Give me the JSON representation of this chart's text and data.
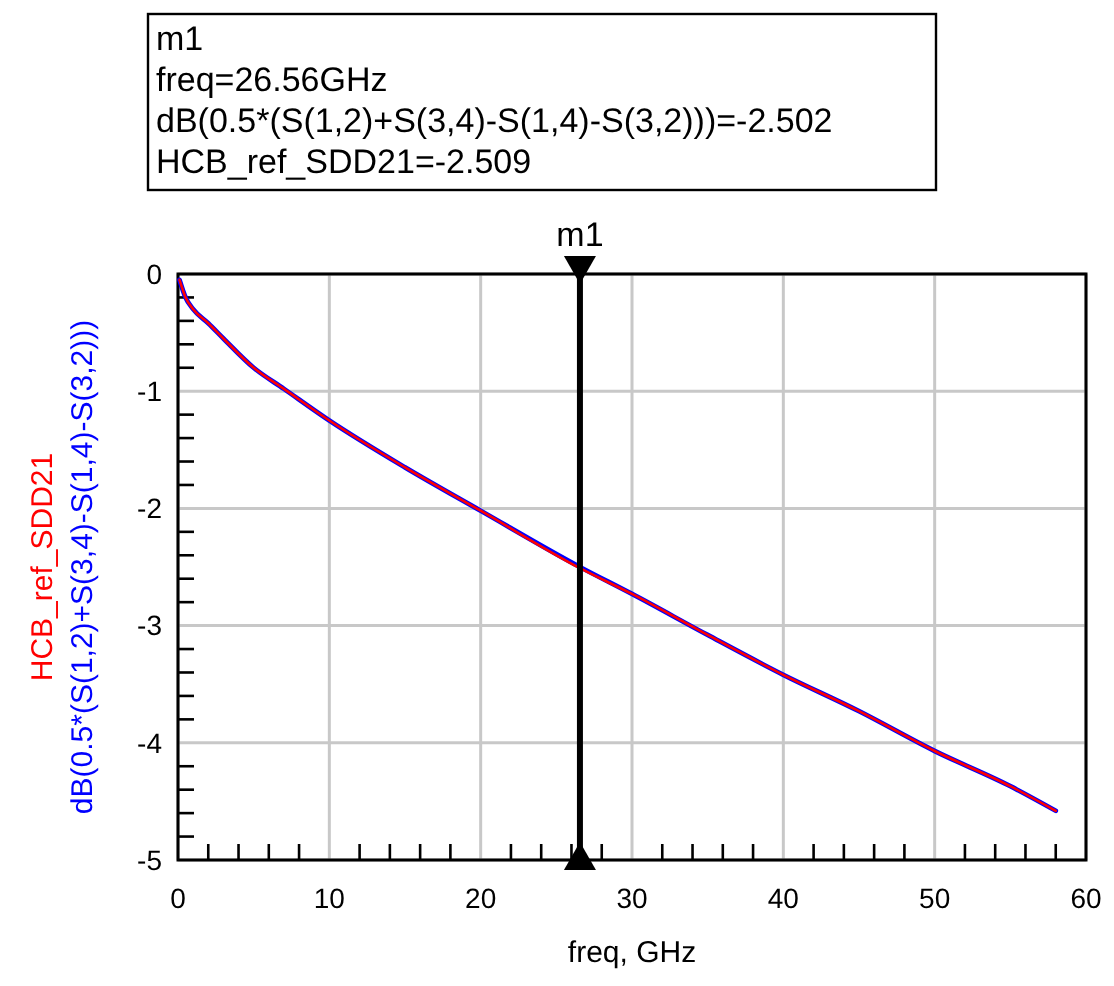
{
  "chart_data": {
    "type": "line",
    "xlabel": "freq, GHz",
    "annotations": [
      "m1",
      "freq=26.56GHz",
      "dB(0.5*(S(1,2)+S(3,4)-S(1,4)-S(3,2)))=-2.502",
      "HCB_ref_SDD21=-2.509"
    ],
    "x": [
      0.1,
      0.5,
      1,
      2,
      3,
      5,
      7,
      10,
      15,
      20,
      26.56,
      30,
      35,
      40,
      45,
      50,
      55,
      58
    ],
    "series": [
      {
        "name": "dB(0.5*(S(1,2)+S(3,4)-S(1,4)-S(3,2)))",
        "color": "#0000ff",
        "values": [
          -0.05,
          -0.2,
          -0.3,
          -0.42,
          -0.55,
          -0.8,
          -0.98,
          -1.25,
          -1.65,
          -2.02,
          -2.5,
          -2.73,
          -3.08,
          -3.42,
          -3.73,
          -4.07,
          -4.37,
          -4.58
        ]
      },
      {
        "name": "HCB_ref_SDD21",
        "color": "#ff0000",
        "values": [
          -0.05,
          -0.2,
          -0.3,
          -0.42,
          -0.55,
          -0.8,
          -0.98,
          -1.25,
          -1.65,
          -2.02,
          -2.51,
          -2.73,
          -3.08,
          -3.42,
          -3.73,
          -4.07,
          -4.37,
          -4.58
        ]
      }
    ],
    "xlim": [
      0,
      60
    ],
    "ylim": [
      -5,
      0
    ],
    "xticks": [
      0,
      {
        "value": 2,
        "label": null
      },
      {
        "value": 4,
        "label": null
      },
      {
        "value": 6,
        "label": null
      },
      {
        "value": 8,
        "label": null
      },
      10,
      {
        "value": 12,
        "label": null
      },
      {
        "value": 14,
        "label": null
      },
      {
        "value": 16,
        "label": null
      },
      {
        "value": 18,
        "label": null
      },
      20,
      {
        "value": 22,
        "label": null
      },
      {
        "value": 24,
        "label": null
      },
      {
        "value": 26,
        "label": null
      },
      {
        "value": 28,
        "label": null
      },
      30,
      {
        "value": 32,
        "label": null
      },
      {
        "value": 34,
        "label": null
      },
      {
        "value": 36,
        "label": null
      },
      {
        "value": 38,
        "label": null
      },
      40,
      {
        "value": 42,
        "label": null
      },
      {
        "value": 44,
        "label": null
      },
      {
        "value": 46,
        "label": null
      },
      {
        "value": 48,
        "label": null
      },
      50,
      {
        "value": 52,
        "label": null
      },
      {
        "value": 54,
        "label": null
      },
      {
        "value": 56,
        "label": null
      },
      {
        "value": 58,
        "label": null
      },
      60
    ],
    "yticks": [
      -5,
      {
        "value": -4.8,
        "label": null
      },
      {
        "value": -4.6,
        "label": null
      },
      {
        "value": -4.4,
        "label": null
      },
      {
        "value": -4.2,
        "label": null
      },
      -4,
      {
        "value": -3.8,
        "label": null
      },
      {
        "value": -3.6,
        "label": null
      },
      {
        "value": -3.4,
        "label": null
      },
      {
        "value": -3.2,
        "label": null
      },
      -3,
      {
        "value": -2.8,
        "label": null
      },
      {
        "value": -2.6,
        "label": null
      },
      {
        "value": -2.4,
        "label": null
      },
      {
        "value": -2.2,
        "label": null
      },
      -2,
      {
        "value": -1.8,
        "label": null
      },
      {
        "value": -1.6,
        "label": null
      },
      {
        "value": -1.4,
        "label": null
      },
      {
        "value": -1.2,
        "label": null
      },
      -1,
      {
        "value": -0.8,
        "label": null
      },
      {
        "value": -0.6,
        "label": null
      },
      {
        "value": -0.4,
        "label": null
      },
      {
        "value": -0.2,
        "label": null
      },
      0
    ],
    "grid": true,
    "legend": "left",
    "marker": "none",
    "line_style": "solid",
    "ref_lines": [
      {
        "axis": "x",
        "value": 26.56,
        "label": "m1",
        "color": "#000000"
      }
    ]
  }
}
